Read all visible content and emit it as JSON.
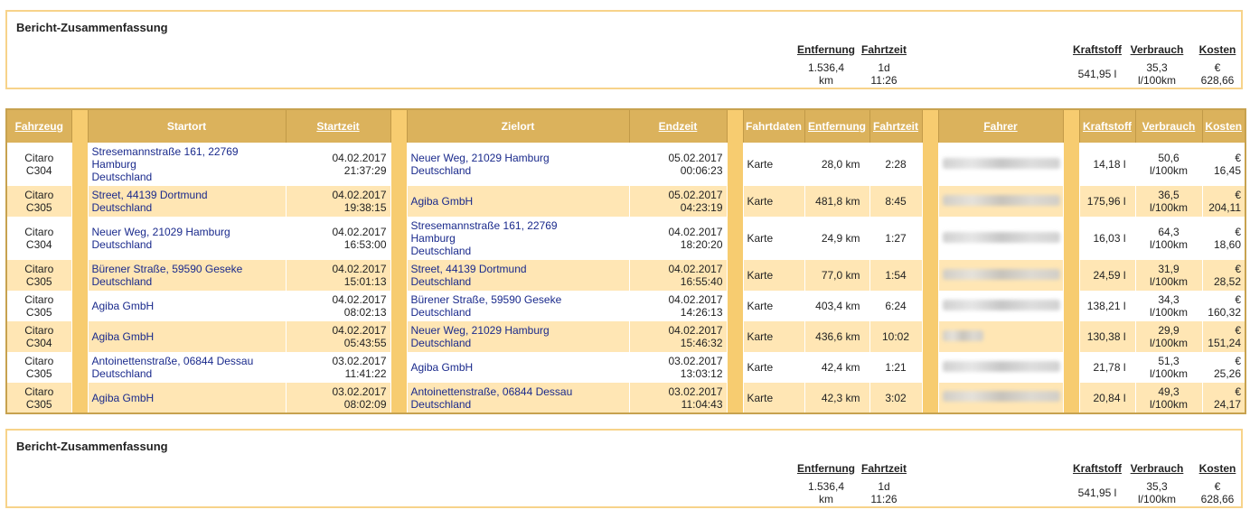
{
  "summary": {
    "title": "Bericht-Zusammenfassung",
    "headers": {
      "distance": "Entfernung",
      "duration": "Fahrtzeit",
      "fuel": "Kraftstoff",
      "consumption": "Verbrauch",
      "cost": "Kosten"
    },
    "values": {
      "distance_num": "1.536,4",
      "distance_unit": "km",
      "duration_days": "1d",
      "duration_time": "11:26",
      "fuel": "541,95 l",
      "consumption_num": "35,3",
      "consumption_unit": "l/100km",
      "cost_cur": "€",
      "cost_num": "628,66"
    }
  },
  "table": {
    "headers": {
      "vehicle": "Fahrzeug",
      "start_location": "Startort",
      "start_time": "Startzeit",
      "destination": "Zielort",
      "end_time": "Endzeit",
      "trip_data": "Fahrtdaten",
      "distance": "Entfernung",
      "duration": "Fahrtzeit",
      "driver": "Fahrer",
      "fuel": "Kraftstoff",
      "consumption": "Verbrauch",
      "cost": "Kosten"
    },
    "rows": [
      {
        "vehicle": [
          "Citaro",
          "C304"
        ],
        "start": [
          "Stresemannstraße 161, 22769",
          "Hamburg",
          "Deutschland"
        ],
        "start_time": [
          "04.02.2017",
          "21:37:29"
        ],
        "dest": [
          "Neuer Weg, 21029 Hamburg",
          "Deutschland"
        ],
        "end_time": [
          "05.02.2017",
          "00:06:23"
        ],
        "trip_data": "Karte",
        "distance": "28,0 km",
        "duration": "2:28",
        "fuel": "14,18 l",
        "consumption": [
          "50,6",
          "l/100km"
        ],
        "cost": [
          "€ 16,45"
        ]
      },
      {
        "vehicle": [
          "Citaro",
          "C305"
        ],
        "start": [
          "Street, 44139 Dortmund",
          "Deutschland"
        ],
        "start_time": [
          "04.02.2017",
          "19:38:15"
        ],
        "dest": [
          "Agiba GmbH"
        ],
        "end_time": [
          "05.02.2017",
          "04:23:19"
        ],
        "trip_data": "Karte",
        "distance": "481,8 km",
        "duration": "8:45",
        "fuel": "175,96 l",
        "consumption": [
          "36,5",
          "l/100km"
        ],
        "cost": [
          "€",
          "204,11"
        ]
      },
      {
        "vehicle": [
          "Citaro",
          "C304"
        ],
        "start": [
          "Neuer Weg, 21029 Hamburg",
          "Deutschland"
        ],
        "start_time": [
          "04.02.2017",
          "16:53:00"
        ],
        "dest": [
          "Stresemannstraße 161, 22769",
          "Hamburg",
          "Deutschland"
        ],
        "end_time": [
          "04.02.2017",
          "18:20:20"
        ],
        "trip_data": "Karte",
        "distance": "24,9 km",
        "duration": "1:27",
        "fuel": "16,03 l",
        "consumption": [
          "64,3",
          "l/100km"
        ],
        "cost": [
          "€ 18,60"
        ]
      },
      {
        "vehicle": [
          "Citaro",
          "C305"
        ],
        "start": [
          "Bürener Straße, 59590 Geseke",
          "Deutschland"
        ],
        "start_time": [
          "04.02.2017",
          "15:01:13"
        ],
        "dest": [
          "Street, 44139 Dortmund",
          "Deutschland"
        ],
        "end_time": [
          "04.02.2017",
          "16:55:40"
        ],
        "trip_data": "Karte",
        "distance": "77,0 km",
        "duration": "1:54",
        "fuel": "24,59 l",
        "consumption": [
          "31,9",
          "l/100km"
        ],
        "cost": [
          "€ 28,52"
        ]
      },
      {
        "vehicle": [
          "Citaro",
          "C305"
        ],
        "start": [
          "Agiba GmbH"
        ],
        "start_time": [
          "04.02.2017",
          "08:02:13"
        ],
        "dest": [
          "Bürener Straße, 59590 Geseke",
          "Deutschland"
        ],
        "end_time": [
          "04.02.2017",
          "14:26:13"
        ],
        "trip_data": "Karte",
        "distance": "403,4 km",
        "duration": "6:24",
        "fuel": "138,21 l",
        "consumption": [
          "34,3",
          "l/100km"
        ],
        "cost": [
          "€",
          "160,32"
        ]
      },
      {
        "vehicle": [
          "Citaro",
          "C304"
        ],
        "start": [
          "Agiba GmbH"
        ],
        "start_time": [
          "04.02.2017",
          "05:43:55"
        ],
        "dest": [
          "Neuer Weg, 21029 Hamburg",
          "Deutschland"
        ],
        "end_time": [
          "04.02.2017",
          "15:46:32"
        ],
        "trip_data": "Karte",
        "distance": "436,6 km",
        "duration": "10:02",
        "fuel": "130,38 l",
        "consumption": [
          "29,9",
          "l/100km"
        ],
        "cost": [
          "€",
          "151,24"
        ],
        "short_driver": true
      },
      {
        "vehicle": [
          "Citaro",
          "C305"
        ],
        "start": [
          "Antoinettenstraße, 06844 Dessau",
          "Deutschland"
        ],
        "start_time": [
          "03.02.2017",
          "11:41:22"
        ],
        "dest": [
          "Agiba GmbH"
        ],
        "end_time": [
          "03.02.2017",
          "13:03:12"
        ],
        "trip_data": "Karte",
        "distance": "42,4 km",
        "duration": "1:21",
        "fuel": "21,78 l",
        "consumption": [
          "51,3",
          "l/100km"
        ],
        "cost": [
          "€ 25,26"
        ]
      },
      {
        "vehicle": [
          "Citaro",
          "C305"
        ],
        "start": [
          "Agiba GmbH"
        ],
        "start_time": [
          "03.02.2017",
          "08:02:09"
        ],
        "dest": [
          "Antoinettenstraße, 06844 Dessau",
          "Deutschland"
        ],
        "end_time": [
          "03.02.2017",
          "11:04:43"
        ],
        "trip_data": "Karte",
        "distance": "42,3 km",
        "duration": "3:02",
        "fuel": "20,84 l",
        "consumption": [
          "49,3",
          "l/100km"
        ],
        "cost": [
          "€ 24,17"
        ]
      }
    ]
  }
}
